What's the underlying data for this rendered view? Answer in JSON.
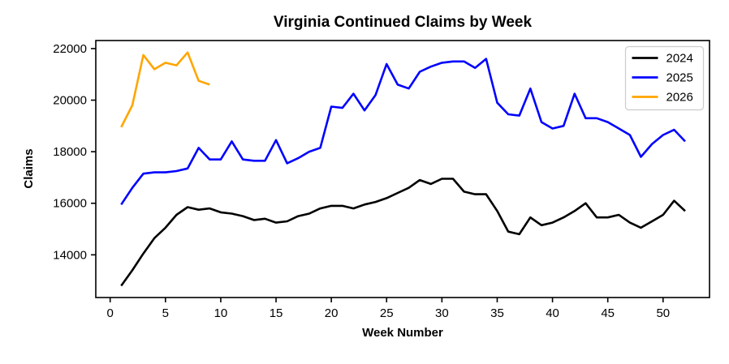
{
  "chart_data": {
    "type": "line",
    "title": "Virginia Continued Claims by Week",
    "xlabel": "Week Number",
    "ylabel": "Claims",
    "xlim": [
      -1.3,
      54.2
    ],
    "ylim": [
      12344,
      22312
    ],
    "x_ticks": [
      0,
      5,
      10,
      15,
      20,
      25,
      30,
      35,
      40,
      45,
      50
    ],
    "y_ticks": [
      14000,
      16000,
      18000,
      20000,
      22000
    ],
    "grid": false,
    "legend_position": "upper right",
    "background_color": "#ffffff",
    "spine_color": "#000000",
    "series": [
      {
        "name": "2024",
        "color": "#000000",
        "x": [
          1,
          2,
          3,
          4,
          5,
          6,
          7,
          8,
          9,
          10,
          11,
          12,
          13,
          14,
          15,
          16,
          17,
          18,
          19,
          20,
          21,
          22,
          23,
          24,
          25,
          26,
          27,
          28,
          29,
          30,
          31,
          32,
          33,
          34,
          35,
          36,
          37,
          38,
          39,
          40,
          41,
          42,
          43,
          44,
          45,
          46,
          47,
          48,
          49,
          50,
          51,
          52
        ],
        "values": [
          12800,
          13400,
          14050,
          14650,
          15050,
          15550,
          15850,
          15750,
          15800,
          15650,
          15600,
          15500,
          15350,
          15400,
          15250,
          15300,
          15500,
          15600,
          15800,
          15900,
          15900,
          15800,
          15950,
          16050,
          16200,
          16400,
          16600,
          16900,
          16750,
          16950,
          16950,
          16450,
          16350,
          16350,
          15700,
          14900,
          14800,
          15450,
          15150,
          15250,
          15450,
          15700,
          16000,
          15450,
          15450,
          15550,
          15250,
          15050,
          15300,
          15550,
          16100,
          15700
        ]
      },
      {
        "name": "2025",
        "color": "#0000ff",
        "x": [
          1,
          2,
          3,
          4,
          5,
          6,
          7,
          8,
          9,
          10,
          11,
          12,
          13,
          14,
          15,
          16,
          17,
          18,
          19,
          20,
          21,
          22,
          23,
          24,
          25,
          26,
          27,
          28,
          29,
          30,
          31,
          32,
          33,
          34,
          35,
          36,
          37,
          38,
          39,
          40,
          41,
          42,
          43,
          44,
          45,
          46,
          47,
          48,
          49,
          50,
          51,
          52
        ],
        "values": [
          15950,
          16600,
          17150,
          17200,
          17200,
          17250,
          17350,
          18150,
          17700,
          17700,
          18400,
          17700,
          17650,
          17650,
          18450,
          17550,
          17750,
          18000,
          18150,
          19750,
          19700,
          20250,
          19600,
          20200,
          21400,
          20600,
          20450,
          21100,
          21300,
          21450,
          21500,
          21500,
          21250,
          21600,
          19900,
          19450,
          19400,
          20450,
          19150,
          18900,
          19000,
          20250,
          19300,
          19300,
          19150,
          18900,
          18650,
          17800,
          18300,
          18650,
          18850,
          18400
        ]
      },
      {
        "name": "2026",
        "color": "#ffa500",
        "x": [
          1,
          2,
          3,
          4,
          5,
          6,
          7,
          8,
          9
        ],
        "values": [
          18950,
          19800,
          21750,
          21200,
          21450,
          21350,
          21850,
          20750,
          20600
        ]
      }
    ]
  }
}
